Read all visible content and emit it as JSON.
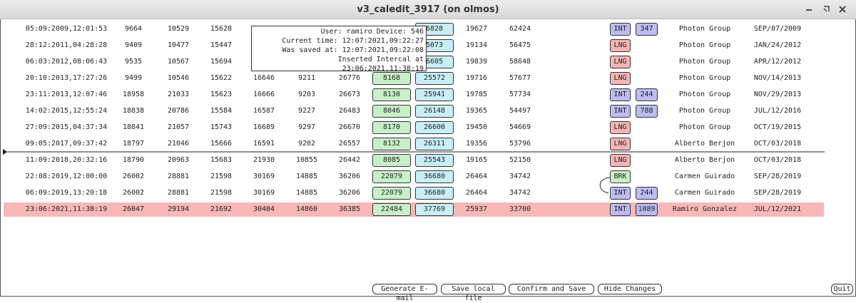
{
  "window": {
    "title": "v3_caledit_3917 (on olmos)"
  },
  "rows": [
    {
      "cells": [
        "05:09:2009,12:01:53",
        "9664",
        "10529",
        "15628",
        null,
        null,
        null,
        null,
        "6828",
        "19627",
        "62424"
      ],
      "tag": "INT",
      "tag_color": "#bcbcf4",
      "count": "347",
      "group": "Photon Group",
      "date": "SEP/07/2009"
    },
    {
      "cells": [
        "28:12:2011,04:28:28",
        "9409",
        "10477",
        "15447",
        null,
        null,
        null,
        null,
        "5073",
        "19134",
        "56475"
      ],
      "tag": "LNG",
      "tag_color": "#f6b4b4",
      "count": null,
      "group": "Photon Group",
      "date": "JAN/24/2012"
    },
    {
      "cells": [
        "06:03:2012,08:06:43",
        "9535",
        "10567",
        "15694",
        null,
        null,
        null,
        null,
        "6605",
        "19839",
        "58648"
      ],
      "tag": "LNG",
      "tag_color": "#f6b4b4",
      "count": null,
      "group": "Photon Group",
      "date": "APR/12/2012"
    },
    {
      "cells": [
        "20:10:2013,17:27:26",
        "9499",
        "10546",
        "15622",
        "16646",
        "9211",
        "26776",
        "8168",
        "25572",
        "19716",
        "57677"
      ],
      "tag": "LNG",
      "tag_color": "#f6b4b4",
      "count": null,
      "group": "Photon Group",
      "date": "NOV/14/2013"
    },
    {
      "cells": [
        "23:11:2013,12:07:46",
        "18958",
        "21033",
        "15623",
        "16666",
        "9203",
        "26673",
        "8130",
        "25941",
        "19785",
        "57734"
      ],
      "tag": "INT",
      "tag_color": "#bcbcf4",
      "count": "244",
      "group": "Photon Group",
      "date": "NOV/29/2013"
    },
    {
      "cells": [
        "14:02:2015,12:55:24",
        "18838",
        "20786",
        "15584",
        "16587",
        "9227",
        "26483",
        "8046",
        "26148",
        "19365",
        "54497"
      ],
      "tag": "INT",
      "tag_color": "#bcbcf4",
      "count": "788",
      "group": "Photon Group",
      "date": "JUL/12/2016"
    },
    {
      "cells": [
        "27:09:2015,04:37:34",
        "18841",
        "21057",
        "15743",
        "16689",
        "9297",
        "26670",
        "8170",
        "26600",
        "19450",
        "54669"
      ],
      "tag": "LNG",
      "tag_color": "#f6b4b4",
      "count": null,
      "group": "Photon Group",
      "date": "OCT/19/2015"
    },
    {
      "cells": [
        "09:05:2017,09:37:42",
        "18797",
        "21046",
        "15666",
        "16591",
        "9202",
        "26557",
        "8132",
        "26311",
        "19356",
        "53796"
      ],
      "tag": "LNG",
      "tag_color": "#f6b4b4",
      "count": null,
      "group": "Alberto Berjon",
      "date": "OCT/03/2018"
    },
    {
      "cells": [
        "11:09:2018,20:32:16",
        "18790",
        "20963",
        "15683",
        "21930",
        "10855",
        "26442",
        "8085",
        "25543",
        "19165",
        "52150"
      ],
      "tag": "LNG",
      "tag_color": "#f6b4b4",
      "count": null,
      "group": "Alberto Berjon",
      "date": "OCT/03/2018"
    },
    {
      "cells": [
        "22:08:2019,12:00:00",
        "26002",
        "28881",
        "21598",
        "30169",
        "14885",
        "36206",
        "22079",
        "36680",
        "26464",
        "34742"
      ],
      "tag": "BRK",
      "tag_color": "#c8f0c0",
      "count": null,
      "group": "Carmen Guirado",
      "date": "SEP/28/2019"
    },
    {
      "cells": [
        "06:09:2019,13:20:18",
        "26002",
        "28881",
        "21598",
        "30169",
        "14885",
        "36206",
        "22079",
        "36680",
        "26464",
        "34742"
      ],
      "tag": "INT",
      "tag_color": "#bcbcf4",
      "count": "244",
      "group": "Carmen Guirado",
      "date": "SEP/28/2019"
    },
    {
      "cells": [
        "23:06:2021,11:38:19",
        "26047",
        "29194",
        "21692",
        "30404",
        "14860",
        "36385",
        "22484",
        "37769",
        "25937",
        "33700"
      ],
      "tag": "INT",
      "tag_color": "#bcbcf4",
      "count": "1089",
      "group": "Ramiro Gonzalez",
      "date": "JUL/12/2021",
      "background": "#f8b8b8"
    }
  ],
  "tooltip": {
    "lines": [
      "User: ramiro Device: 546",
      "Current time: 12:07:2021,09:22:27",
      "Was saved at: 12:07:2021,09:22:08",
      "Inserted Intercal at 23:06:2021,11:38:19"
    ]
  },
  "buttons": [
    "Generate E-mail",
    "Save local file",
    "Confirm and Save",
    "Hide Changes",
    "Quit"
  ]
}
